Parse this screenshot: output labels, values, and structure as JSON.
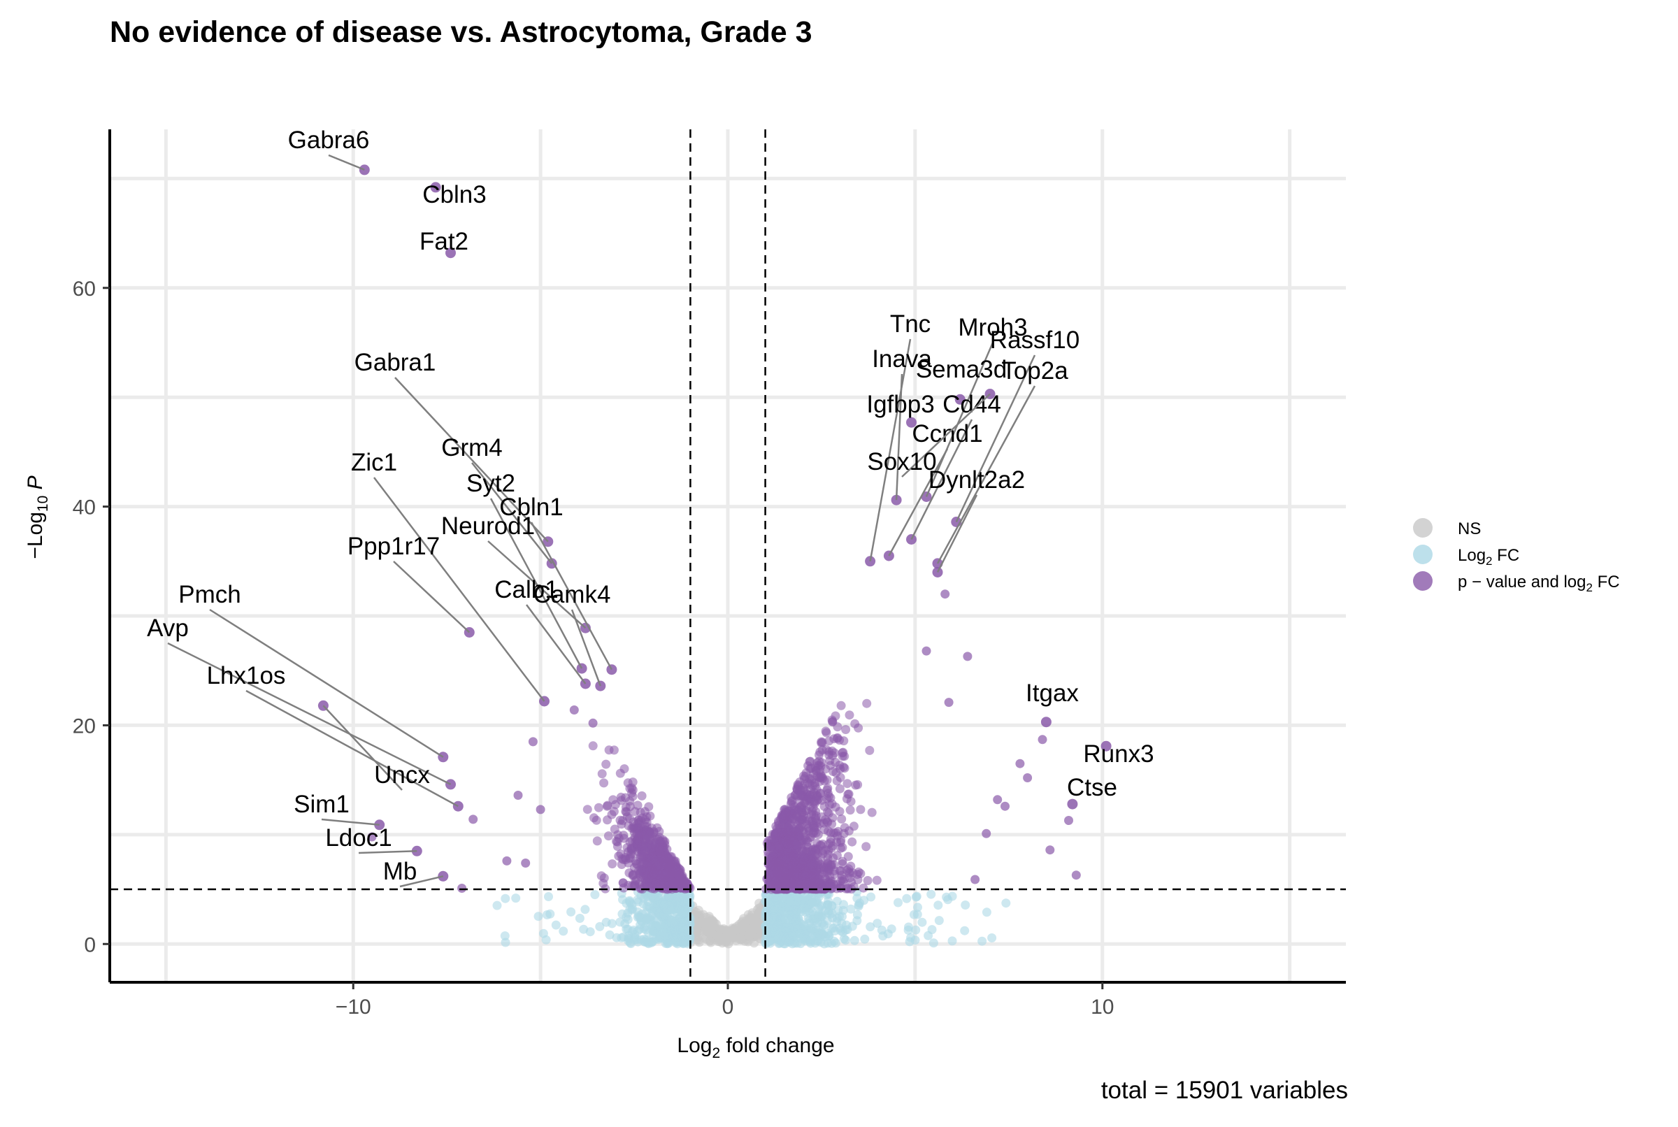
{
  "chart_data": {
    "type": "scatter",
    "title": "No evidence of disease vs. Astrocytoma, Grade 3",
    "xlabel": "Log2 fold change",
    "ylabel": "-Log10 P",
    "caption": "total = 15901 variables",
    "xlim": [
      -16.5,
      16.5
    ],
    "ylim": [
      -3.5,
      74.5
    ],
    "x_ticks": [
      -10,
      0,
      10
    ],
    "y_ticks": [
      0,
      20,
      40,
      60
    ],
    "x_tick_labels": [
      "−10",
      "0",
      "10"
    ],
    "y_tick_labels": [
      "0",
      "20",
      "40",
      "60"
    ],
    "grid": true,
    "legend_position": "right",
    "thresholds": {
      "fold_change": 1,
      "p_value_log10": 5
    },
    "legend": [
      {
        "label": "NS",
        "color": "#c8c8c8"
      },
      {
        "label": "Log2 FC",
        "color": "#add8e6"
      },
      {
        "label": "p − value and log2 FC",
        "color": "#8a5aa9"
      }
    ],
    "colors": {
      "ns": "#c8c8c8",
      "fc": "#add8e6",
      "both": "#8a5aa9"
    },
    "labeled_genes": [
      {
        "name": "Gabra6",
        "x": -9.7,
        "y": 70.8
      },
      {
        "name": "Cbln3",
        "x": -7.8,
        "y": 69.2
      },
      {
        "name": "Fat2",
        "x": -7.4,
        "y": 63.2
      },
      {
        "name": "Gabra1",
        "x": -4.8,
        "y": 36.8
      },
      {
        "name": "Grm4",
        "x": -4.7,
        "y": 34.8
      },
      {
        "name": "Zic1",
        "x": -4.9,
        "y": 22.2
      },
      {
        "name": "Syt2",
        "x": -3.9,
        "y": 25.2
      },
      {
        "name": "Cbln1",
        "x": -3.1,
        "y": 25.1
      },
      {
        "name": "Neurod1",
        "x": -3.8,
        "y": 28.9
      },
      {
        "name": "Ppp1r17",
        "x": -6.9,
        "y": 28.5
      },
      {
        "name": "Calb1",
        "x": -3.8,
        "y": 23.8
      },
      {
        "name": "Camk4",
        "x": -3.4,
        "y": 23.6
      },
      {
        "name": "Pmch",
        "x": -7.6,
        "y": 17.1
      },
      {
        "name": "Avp",
        "x": -7.4,
        "y": 14.6
      },
      {
        "name": "Lhx1os",
        "x": -7.2,
        "y": 12.6
      },
      {
        "name": "Uncx",
        "x": -10.8,
        "y": 21.8
      },
      {
        "name": "Sim1",
        "x": -9.3,
        "y": 10.9
      },
      {
        "name": "Ldoc1",
        "x": -8.3,
        "y": 8.5
      },
      {
        "name": "Mb",
        "x": -7.6,
        "y": 6.2
      },
      {
        "name": "Tnc",
        "x": 3.8,
        "y": 35.0
      },
      {
        "name": "Mroh3",
        "x": 5.3,
        "y": 40.9
      },
      {
        "name": "Rassf10",
        "x": 6.1,
        "y": 38.6
      },
      {
        "name": "Inava",
        "x": 4.5,
        "y": 40.6
      },
      {
        "name": "Sema3d",
        "x": 6.2,
        "y": 49.8
      },
      {
        "name": "Top2a",
        "x": 5.6,
        "y": 34.8
      },
      {
        "name": "Igfbp3",
        "x": 4.9,
        "y": 47.7
      },
      {
        "name": "Cd44",
        "x": 4.9,
        "y": 37.0
      },
      {
        "name": "Ccnd1",
        "x": 4.3,
        "y": 35.5
      },
      {
        "name": "Sox10",
        "x": 7.0,
        "y": 50.3
      },
      {
        "name": "Dynlt2a2",
        "x": 5.6,
        "y": 34.0
      },
      {
        "name": "Itgax",
        "x": 8.5,
        "y": 20.3
      },
      {
        "name": "Runx3",
        "x": 10.1,
        "y": 18.1
      },
      {
        "name": "Ctse",
        "x": 9.2,
        "y": 12.8
      }
    ],
    "extra_points": [
      {
        "x": -9.5,
        "y": 9.8
      },
      {
        "x": -7.1,
        "y": 5.1
      },
      {
        "x": -6.8,
        "y": 11.4
      },
      {
        "x": -5.6,
        "y": 13.6
      },
      {
        "x": -5.2,
        "y": 18.5
      },
      {
        "x": -4.1,
        "y": 21.4
      },
      {
        "x": -3.6,
        "y": 20.2
      },
      {
        "x": -5.0,
        "y": 12.3
      },
      {
        "x": -5.4,
        "y": 7.4
      },
      {
        "x": -5.9,
        "y": 7.6
      },
      {
        "x": 5.3,
        "y": 26.8
      },
      {
        "x": 6.4,
        "y": 26.3
      },
      {
        "x": 5.8,
        "y": 32.0
      },
      {
        "x": 5.9,
        "y": 22.1
      },
      {
        "x": 7.8,
        "y": 16.5
      },
      {
        "x": 8.0,
        "y": 15.2
      },
      {
        "x": 8.4,
        "y": 18.7
      },
      {
        "x": 9.1,
        "y": 11.3
      },
      {
        "x": 7.4,
        "y": 12.6
      },
      {
        "x": 8.6,
        "y": 8.6
      },
      {
        "x": 9.3,
        "y": 6.3
      },
      {
        "x": 6.6,
        "y": 5.9
      },
      {
        "x": 7.2,
        "y": 13.2
      },
      {
        "x": 6.9,
        "y": 10.1
      }
    ]
  }
}
